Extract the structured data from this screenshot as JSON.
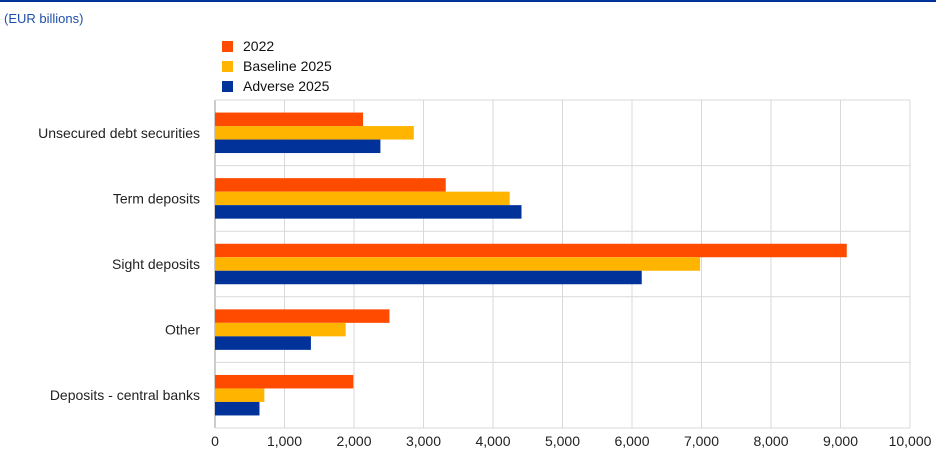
{
  "unit_label": "(EUR billions)",
  "colors": {
    "rule": "#003399",
    "grid": "#d9d9d9",
    "series": [
      "#ff4b00",
      "#ffb400",
      "#003299"
    ]
  },
  "chart_data": {
    "type": "bar",
    "orientation": "horizontal",
    "title": "",
    "xlabel": "",
    "ylabel": "",
    "categories": [
      "Unsecured debt securities",
      "Term deposits",
      "Sight deposits",
      "Other",
      "Deposits - central banks"
    ],
    "series": [
      {
        "name": "2022",
        "values": [
          2130,
          3320,
          9090,
          2510,
          1990
        ]
      },
      {
        "name": "Baseline 2025",
        "values": [
          2860,
          4240,
          6980,
          1880,
          710
        ]
      },
      {
        "name": "Adverse 2025",
        "values": [
          2380,
          4410,
          6140,
          1380,
          640
        ]
      }
    ],
    "xlim": [
      0,
      10000
    ],
    "x_ticks": [
      0,
      1000,
      2000,
      3000,
      4000,
      5000,
      6000,
      7000,
      8000,
      9000,
      10000
    ],
    "x_tick_labels": [
      "0",
      "1,000",
      "2,000",
      "3,000",
      "4,000",
      "5,000",
      "6,000",
      "7,000",
      "8,000",
      "9,000",
      "10,000"
    ],
    "grid": "vertical",
    "legend_position": "top-left"
  }
}
